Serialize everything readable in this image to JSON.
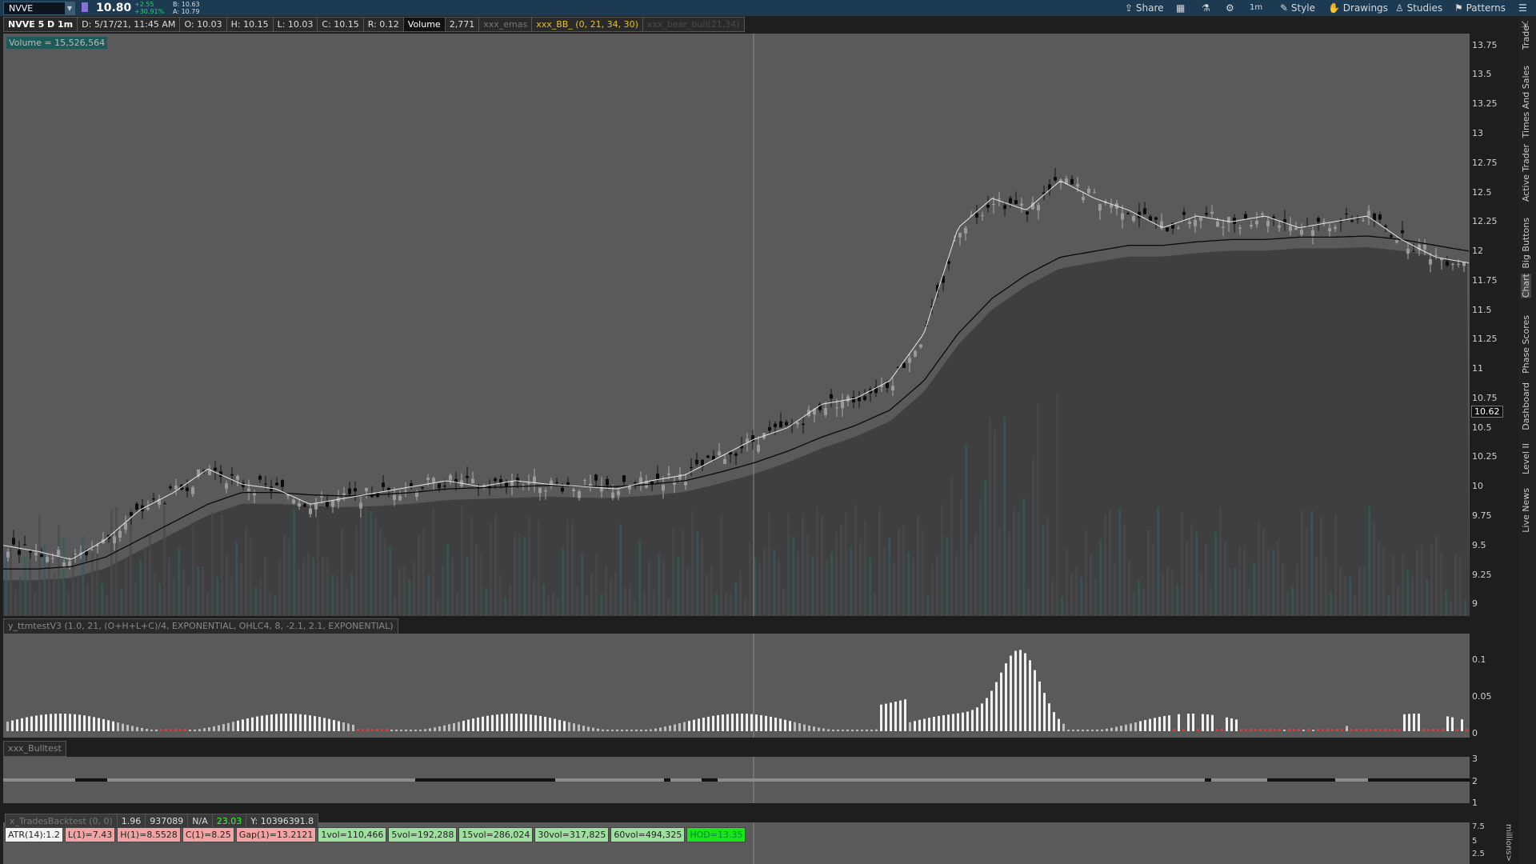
{
  "toolbar": {
    "symbol": "NVVE",
    "last_price": "10.80",
    "change": "+2.55",
    "change_pct": "+30.91%",
    "bid": "B: 10.63",
    "ask": "A: 10.79",
    "share_label": "Share",
    "style_label": "Style",
    "drawings_label": "Drawings",
    "studies_label": "Studies",
    "patterns_label": "Patterns",
    "timeframe_label": "1m"
  },
  "header": {
    "chart_title": "NVVE 5 D 1m",
    "date": "D: 5/17/21, 11:45 AM",
    "open": "O: 10.03",
    "high": "H: 10.15",
    "low": "L: 10.03",
    "close": "C: 10.15",
    "range": "R: 0.12",
    "volume_label": "Volume",
    "volume_value": "2,771",
    "emas": "xxx_emas",
    "bb": "xxx_BB_ (0, 21, 34, 30)",
    "bear_bull": "xxx_bear_bull(21,34)"
  },
  "volume_badge": "Volume = 15,526,564",
  "price_axis": [
    "13.75",
    "13.5",
    "13.25",
    "13",
    "12.75",
    "12.5",
    "12.25",
    "12",
    "11.75",
    "11.5",
    "11.25",
    "11",
    "10.75",
    "10.5",
    "10.25",
    "10",
    "9.75",
    "9.5",
    "9.25",
    "9"
  ],
  "current_price_tag": "10.62",
  "momentum": {
    "label": "y_ttmtestV3 (1.0, 21, (O+H+L+C)/4, EXPONENTIAL, OHLC4, 8, -2.1, 2.1, EXPONENTIAL)",
    "axis": [
      "0.1",
      "0.05",
      "0"
    ]
  },
  "bulltest": {
    "label": "xxx_Bulltest",
    "axis": [
      "3",
      "2",
      "1"
    ]
  },
  "backtest": {
    "label": "x_TradesBacktest (0, 0)",
    "v1": "1.96",
    "v2": "937089",
    "v3": "N/A",
    "v4": "23.03",
    "v5": "Y: 10396391.8",
    "axis": [
      "7.5",
      "5",
      "2.5"
    ],
    "unit": "millions>"
  },
  "stats": {
    "atr": "ATR(14):1.2",
    "low": "L(1)=7.43",
    "high": "H(1)=8.5528",
    "close": "C(1)=8.25",
    "gap": "Gap(1)=13.2121",
    "vol1": "1vol=110,466",
    "vol5": "5vol=192,288",
    "vol15": "15vol=286,024",
    "vol30": "30vol=317,825",
    "vol60": "60vol=494,325",
    "hod": "HOD=13.35"
  },
  "side_tabs": [
    "Trade",
    "Times And Sales",
    "Active Trader",
    "Big Buttons",
    "Chart",
    "Phase Scores",
    "Dashboard",
    "Level II",
    "Live News"
  ],
  "chart_data": {
    "type": "line",
    "title": "NVVE 5 D 1m",
    "xlabel": "",
    "ylabel": "",
    "ylim": [
      8.9,
      13.85
    ],
    "series": [
      {
        "values": [
          9.5,
          9.45,
          9.38,
          9.55,
          9.8,
          9.95,
          10.15,
          10.02,
          9.98,
          9.85,
          9.9,
          9.95,
          10.0,
          10.05,
          10.0,
          10.05,
          10.02,
          10.0,
          9.98,
          10.05,
          10.1,
          10.25,
          10.4,
          10.5,
          10.7,
          10.75,
          10.9,
          11.3,
          12.2,
          12.45,
          12.35,
          12.6,
          12.45,
          12.35,
          12.2,
          12.3,
          12.25,
          12.3,
          12.2,
          12.25,
          12.3,
          12.1,
          11.95,
          11.9
        ]
      },
      {
        "values": [
          9.3,
          9.3,
          9.32,
          9.4,
          9.55,
          9.7,
          9.85,
          9.95,
          9.95,
          9.93,
          9.92,
          9.93,
          9.95,
          9.98,
          9.99,
          10.0,
          10.01,
          10.0,
          10.0,
          10.02,
          10.05,
          10.12,
          10.2,
          10.3,
          10.42,
          10.52,
          10.65,
          10.9,
          11.3,
          11.6,
          11.8,
          11.95,
          12.0,
          12.05,
          12.05,
          12.08,
          12.1,
          12.1,
          12.12,
          12.12,
          12.13,
          12.1,
          12.05,
          12.0
        ]
      }
    ]
  }
}
